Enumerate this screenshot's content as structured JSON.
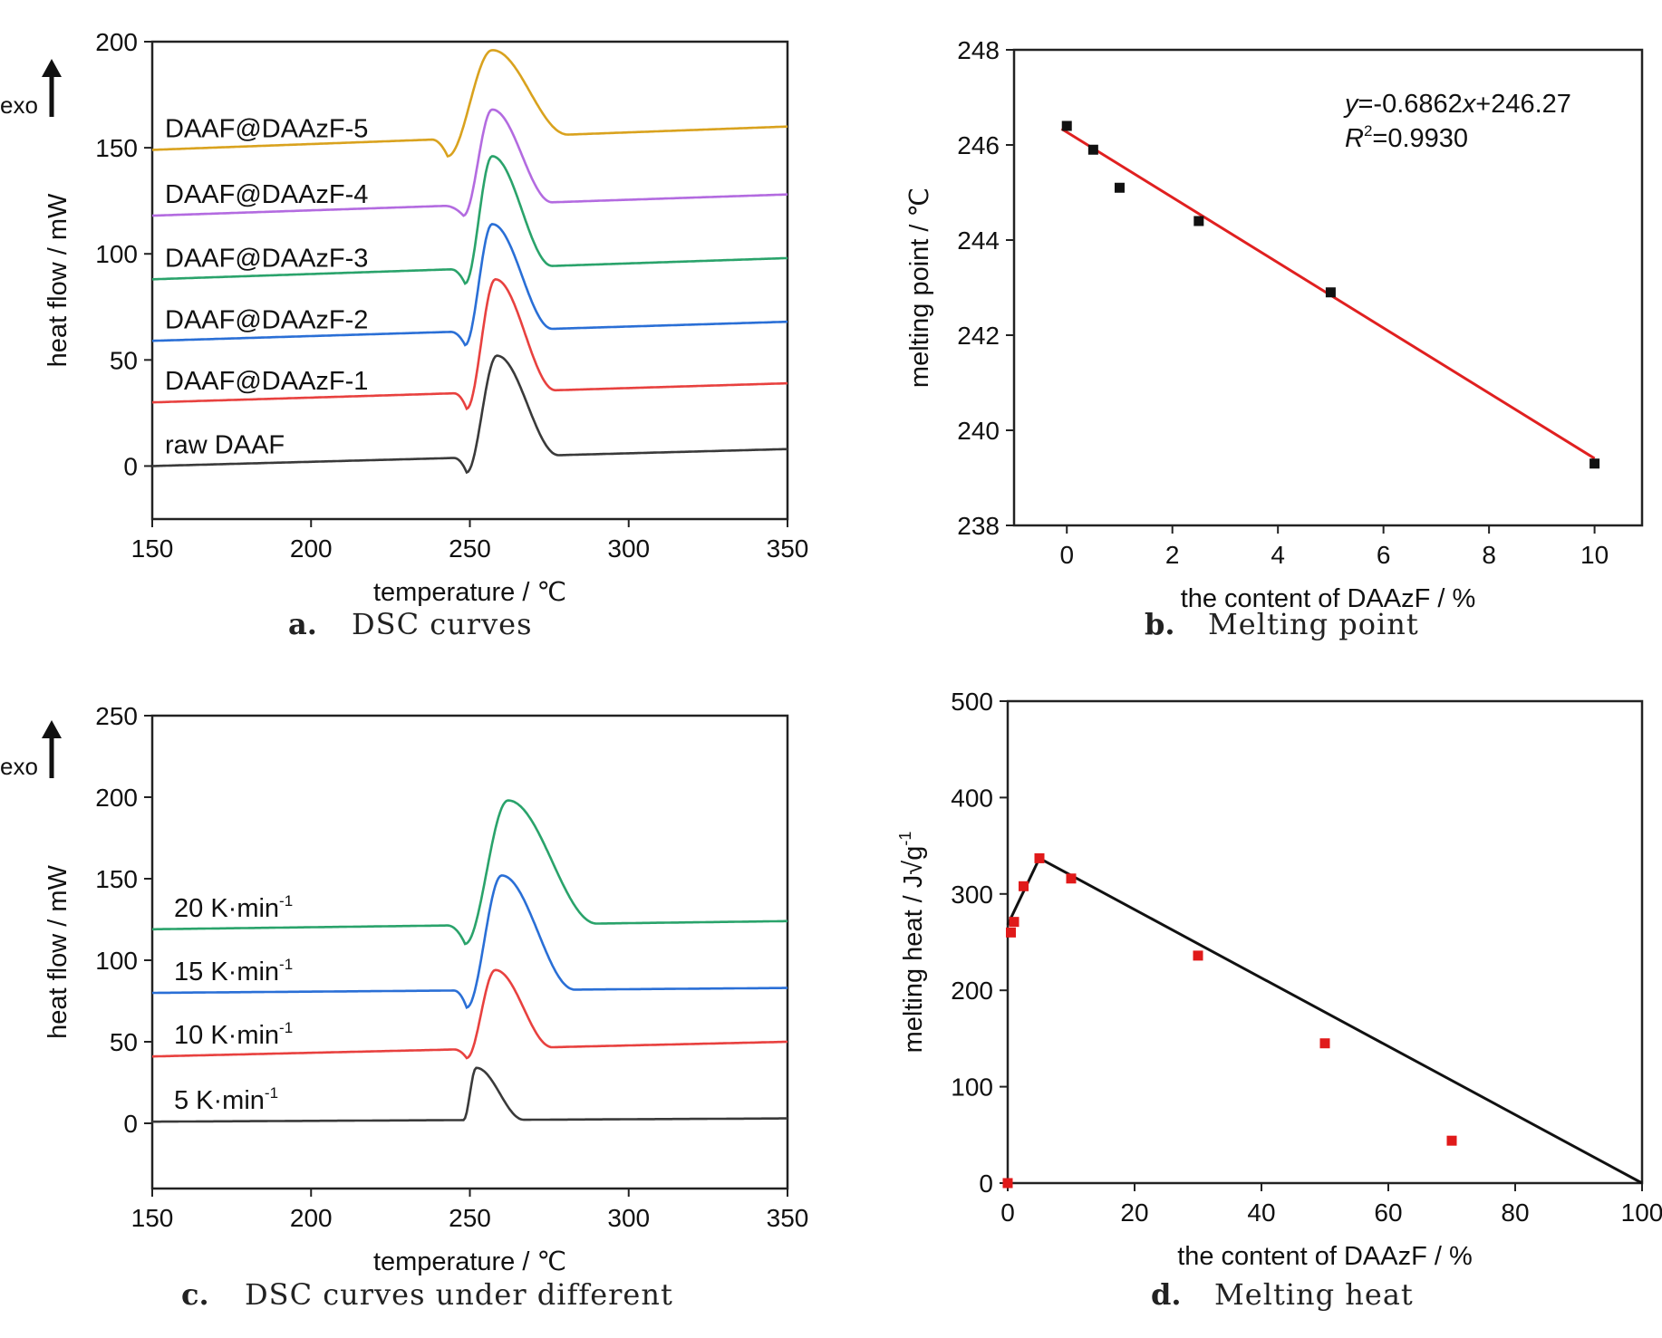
{
  "chart_data": [
    {
      "id": "a",
      "type": "line",
      "caption_letter": "a.",
      "caption": "DSC curves",
      "xlabel": "temperature / ℃",
      "ylabel": "heat flow / mW",
      "exo_label": "exo",
      "xlim": [
        150,
        350
      ],
      "ylim": [
        -25,
        200
      ],
      "xticks": [
        150,
        200,
        250,
        300,
        350
      ],
      "yticks": [
        0,
        50,
        100,
        150,
        200
      ],
      "series": [
        {
          "name": "raw DAAF",
          "color": "#3a3a3a",
          "baseline_start": 0,
          "baseline_end": 8,
          "onset": 245,
          "dip": -3,
          "dip_x": 249,
          "peak": 52,
          "peak_x": 258.5,
          "end_x": 278
        },
        {
          "name": "DAAF@DAAzF-1",
          "color": "#e8413f",
          "baseline_start": 30,
          "baseline_end": 39,
          "onset": 245,
          "dip": 27,
          "dip_x": 249,
          "peak": 88,
          "peak_x": 258,
          "end_x": 277
        },
        {
          "name": "DAAF@DAAzF-2",
          "color": "#2a6fd6",
          "baseline_start": 59,
          "baseline_end": 68,
          "onset": 244,
          "dip": 57,
          "dip_x": 248.5,
          "peak": 114,
          "peak_x": 257,
          "end_x": 276
        },
        {
          "name": "DAAF@DAAzF-3",
          "color": "#2aa36b",
          "baseline_start": 88,
          "baseline_end": 98,
          "onset": 244,
          "dip": 86,
          "dip_x": 248.5,
          "peak": 146,
          "peak_x": 257,
          "end_x": 276
        },
        {
          "name": "DAAF@DAAzF-4",
          "color": "#b36be0",
          "baseline_start": 118,
          "baseline_end": 128,
          "onset": 242,
          "dip": 118,
          "dip_x": 248,
          "peak": 168,
          "peak_x": 257,
          "end_x": 276
        },
        {
          "name": "DAAF@DAAzF-5",
          "color": "#d9a21e",
          "baseline_start": 149,
          "baseline_end": 160,
          "onset": 238,
          "dip": 146,
          "dip_x": 243,
          "peak": 196,
          "peak_x": 257,
          "end_x": 281
        }
      ]
    },
    {
      "id": "b",
      "type": "scatter",
      "caption_letter": "b.",
      "caption": "Melting point",
      "xlabel": "the content of DAAzF / %",
      "ylabel": "melting point / ℃",
      "xlim": [
        -1,
        10.9
      ],
      "ylim": [
        238,
        248
      ],
      "xticks": [
        0,
        2,
        4,
        6,
        8,
        10
      ],
      "yticks": [
        238,
        240,
        242,
        244,
        246,
        248
      ],
      "points": [
        {
          "x": 0,
          "y": 246.4
        },
        {
          "x": 0.5,
          "y": 245.9
        },
        {
          "x": 1,
          "y": 245.1
        },
        {
          "x": 2.5,
          "y": 244.4
        },
        {
          "x": 5,
          "y": 242.9
        },
        {
          "x": 10,
          "y": 239.3
        }
      ],
      "fit": {
        "slope": -0.6862,
        "intercept": 246.27,
        "x_from": -0.1,
        "x_to": 10
      },
      "point_color": "#111111",
      "fit_color": "#e02020",
      "equation_y_var": "y",
      "equation_y_rest": "=-0.6862",
      "equation_x_var": "x",
      "equation_x_rest": "+246.27",
      "r2_var": "R",
      "r2_sup": "2",
      "r2_rest": "=0.9930"
    },
    {
      "id": "c",
      "type": "line",
      "caption_letter": "c.",
      "caption": "DSC curves under different",
      "xlabel": "temperature / ℃",
      "ylabel": "heat flow / mW",
      "exo_label": "exo",
      "xlim": [
        150,
        350
      ],
      "ylim": [
        -40,
        250
      ],
      "xticks": [
        150,
        200,
        250,
        300,
        350
      ],
      "yticks": [
        0,
        50,
        100,
        150,
        200,
        250
      ],
      "series": [
        {
          "name": "5 K·min",
          "name_sup": "-1",
          "color": "#3a3a3a",
          "baseline_start": 1,
          "baseline_end": 3,
          "onset": 247,
          "dip": 2,
          "dip_x": 248,
          "peak": 34,
          "peak_x": 252,
          "end_x": 267
        },
        {
          "name": "10 K·min",
          "name_sup": "-1",
          "color": "#e8413f",
          "baseline_start": 41,
          "baseline_end": 50,
          "onset": 245,
          "dip": 40,
          "dip_x": 249,
          "peak": 94,
          "peak_x": 258,
          "end_x": 276
        },
        {
          "name": "15 K·min",
          "name_sup": "-1",
          "color": "#2a6fd6",
          "baseline_start": 80,
          "baseline_end": 83,
          "onset": 245,
          "dip": 71,
          "dip_x": 249,
          "peak": 152,
          "peak_x": 260,
          "end_x": 283
        },
        {
          "name": "20 K·min",
          "name_sup": "-1",
          "color": "#2aa36b",
          "baseline_start": 119,
          "baseline_end": 124,
          "onset": 243,
          "dip": 110,
          "dip_x": 248.5,
          "peak": 198,
          "peak_x": 262,
          "end_x": 290
        }
      ]
    },
    {
      "id": "d",
      "type": "scatter",
      "caption_letter": "d.",
      "caption": "Melting heat",
      "xlabel": "the content of DAAzF / %",
      "ylabel": "melting heat / J√g",
      "ylabel_sup": "-1",
      "xlim": [
        0,
        100
      ],
      "ylim": [
        0,
        500
      ],
      "xticks": [
        0,
        20,
        40,
        60,
        80,
        100
      ],
      "yticks": [
        0,
        100,
        200,
        300,
        400,
        500
      ],
      "points": [
        {
          "x": 0,
          "y": 0
        },
        {
          "x": 0.5,
          "y": 260
        },
        {
          "x": 1,
          "y": 271
        },
        {
          "x": 2.5,
          "y": 308
        },
        {
          "x": 5,
          "y": 337
        },
        {
          "x": 10,
          "y": 316
        },
        {
          "x": 30,
          "y": 236
        },
        {
          "x": 50,
          "y": 145
        },
        {
          "x": 70,
          "y": 44
        }
      ],
      "fit_lines": [
        {
          "x1": 0,
          "y1": 268,
          "x2": 5,
          "y2": 337
        },
        {
          "x1": 5,
          "y1": 337,
          "x2": 100,
          "y2": 0
        }
      ],
      "point_color": "#e01a1a",
      "fit_color": "#111111"
    }
  ]
}
